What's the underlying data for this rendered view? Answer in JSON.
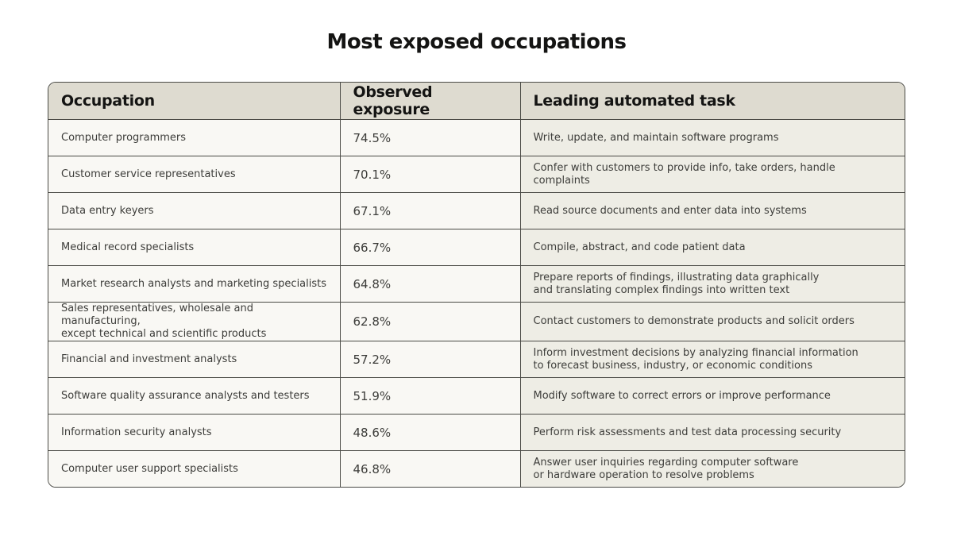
{
  "title": "Most exposed occupations",
  "colors": {
    "header_bg": "#dedbd0",
    "cell_bg": "#f9f8f4",
    "task_bg": "#eeede5",
    "border": "#4a4a45"
  },
  "chart_data": {
    "type": "table",
    "title": "Most exposed occupations",
    "columns": [
      "Occupation",
      "Observed exposure",
      "Leading automated task"
    ],
    "rows": [
      {
        "occupation": [
          "Computer programmers"
        ],
        "exposure": "74.5%",
        "task": [
          "Write, update, and maintain software programs"
        ]
      },
      {
        "occupation": [
          "Customer service representatives"
        ],
        "exposure": "70.1%",
        "task": [
          "Confer with customers to provide info, take orders, handle complaints"
        ]
      },
      {
        "occupation": [
          "Data entry keyers"
        ],
        "exposure": "67.1%",
        "task": [
          "Read source documents and enter data into systems"
        ]
      },
      {
        "occupation": [
          "Medical record specialists"
        ],
        "exposure": "66.7%",
        "task": [
          "Compile, abstract, and code patient data"
        ]
      },
      {
        "occupation": [
          "Market research analysts and marketing specialists"
        ],
        "exposure": "64.8%",
        "task": [
          "Prepare reports of findings, illustrating data graphically",
          "and translating complex findings into written text"
        ]
      },
      {
        "occupation": [
          "Sales representatives, wholesale and manufacturing,",
          "except technical and scientific products"
        ],
        "exposure": "62.8%",
        "task": [
          "Contact customers to demonstrate products and solicit orders"
        ]
      },
      {
        "occupation": [
          "Financial and investment analysts"
        ],
        "exposure": "57.2%",
        "task": [
          "Inform investment decisions by analyzing financial information",
          "to forecast business, industry, or economic conditions"
        ]
      },
      {
        "occupation": [
          "Software quality assurance analysts and testers"
        ],
        "exposure": "51.9%",
        "task": [
          "Modify software to correct errors or improve performance"
        ]
      },
      {
        "occupation": [
          "Information security analysts"
        ],
        "exposure": "48.6%",
        "task": [
          "Perform risk assessments and test data processing security"
        ]
      },
      {
        "occupation": [
          "Computer user support specialists"
        ],
        "exposure": "46.8%",
        "task": [
          "Answer user inquiries regarding computer software",
          "or hardware operation to resolve problems"
        ]
      }
    ]
  }
}
